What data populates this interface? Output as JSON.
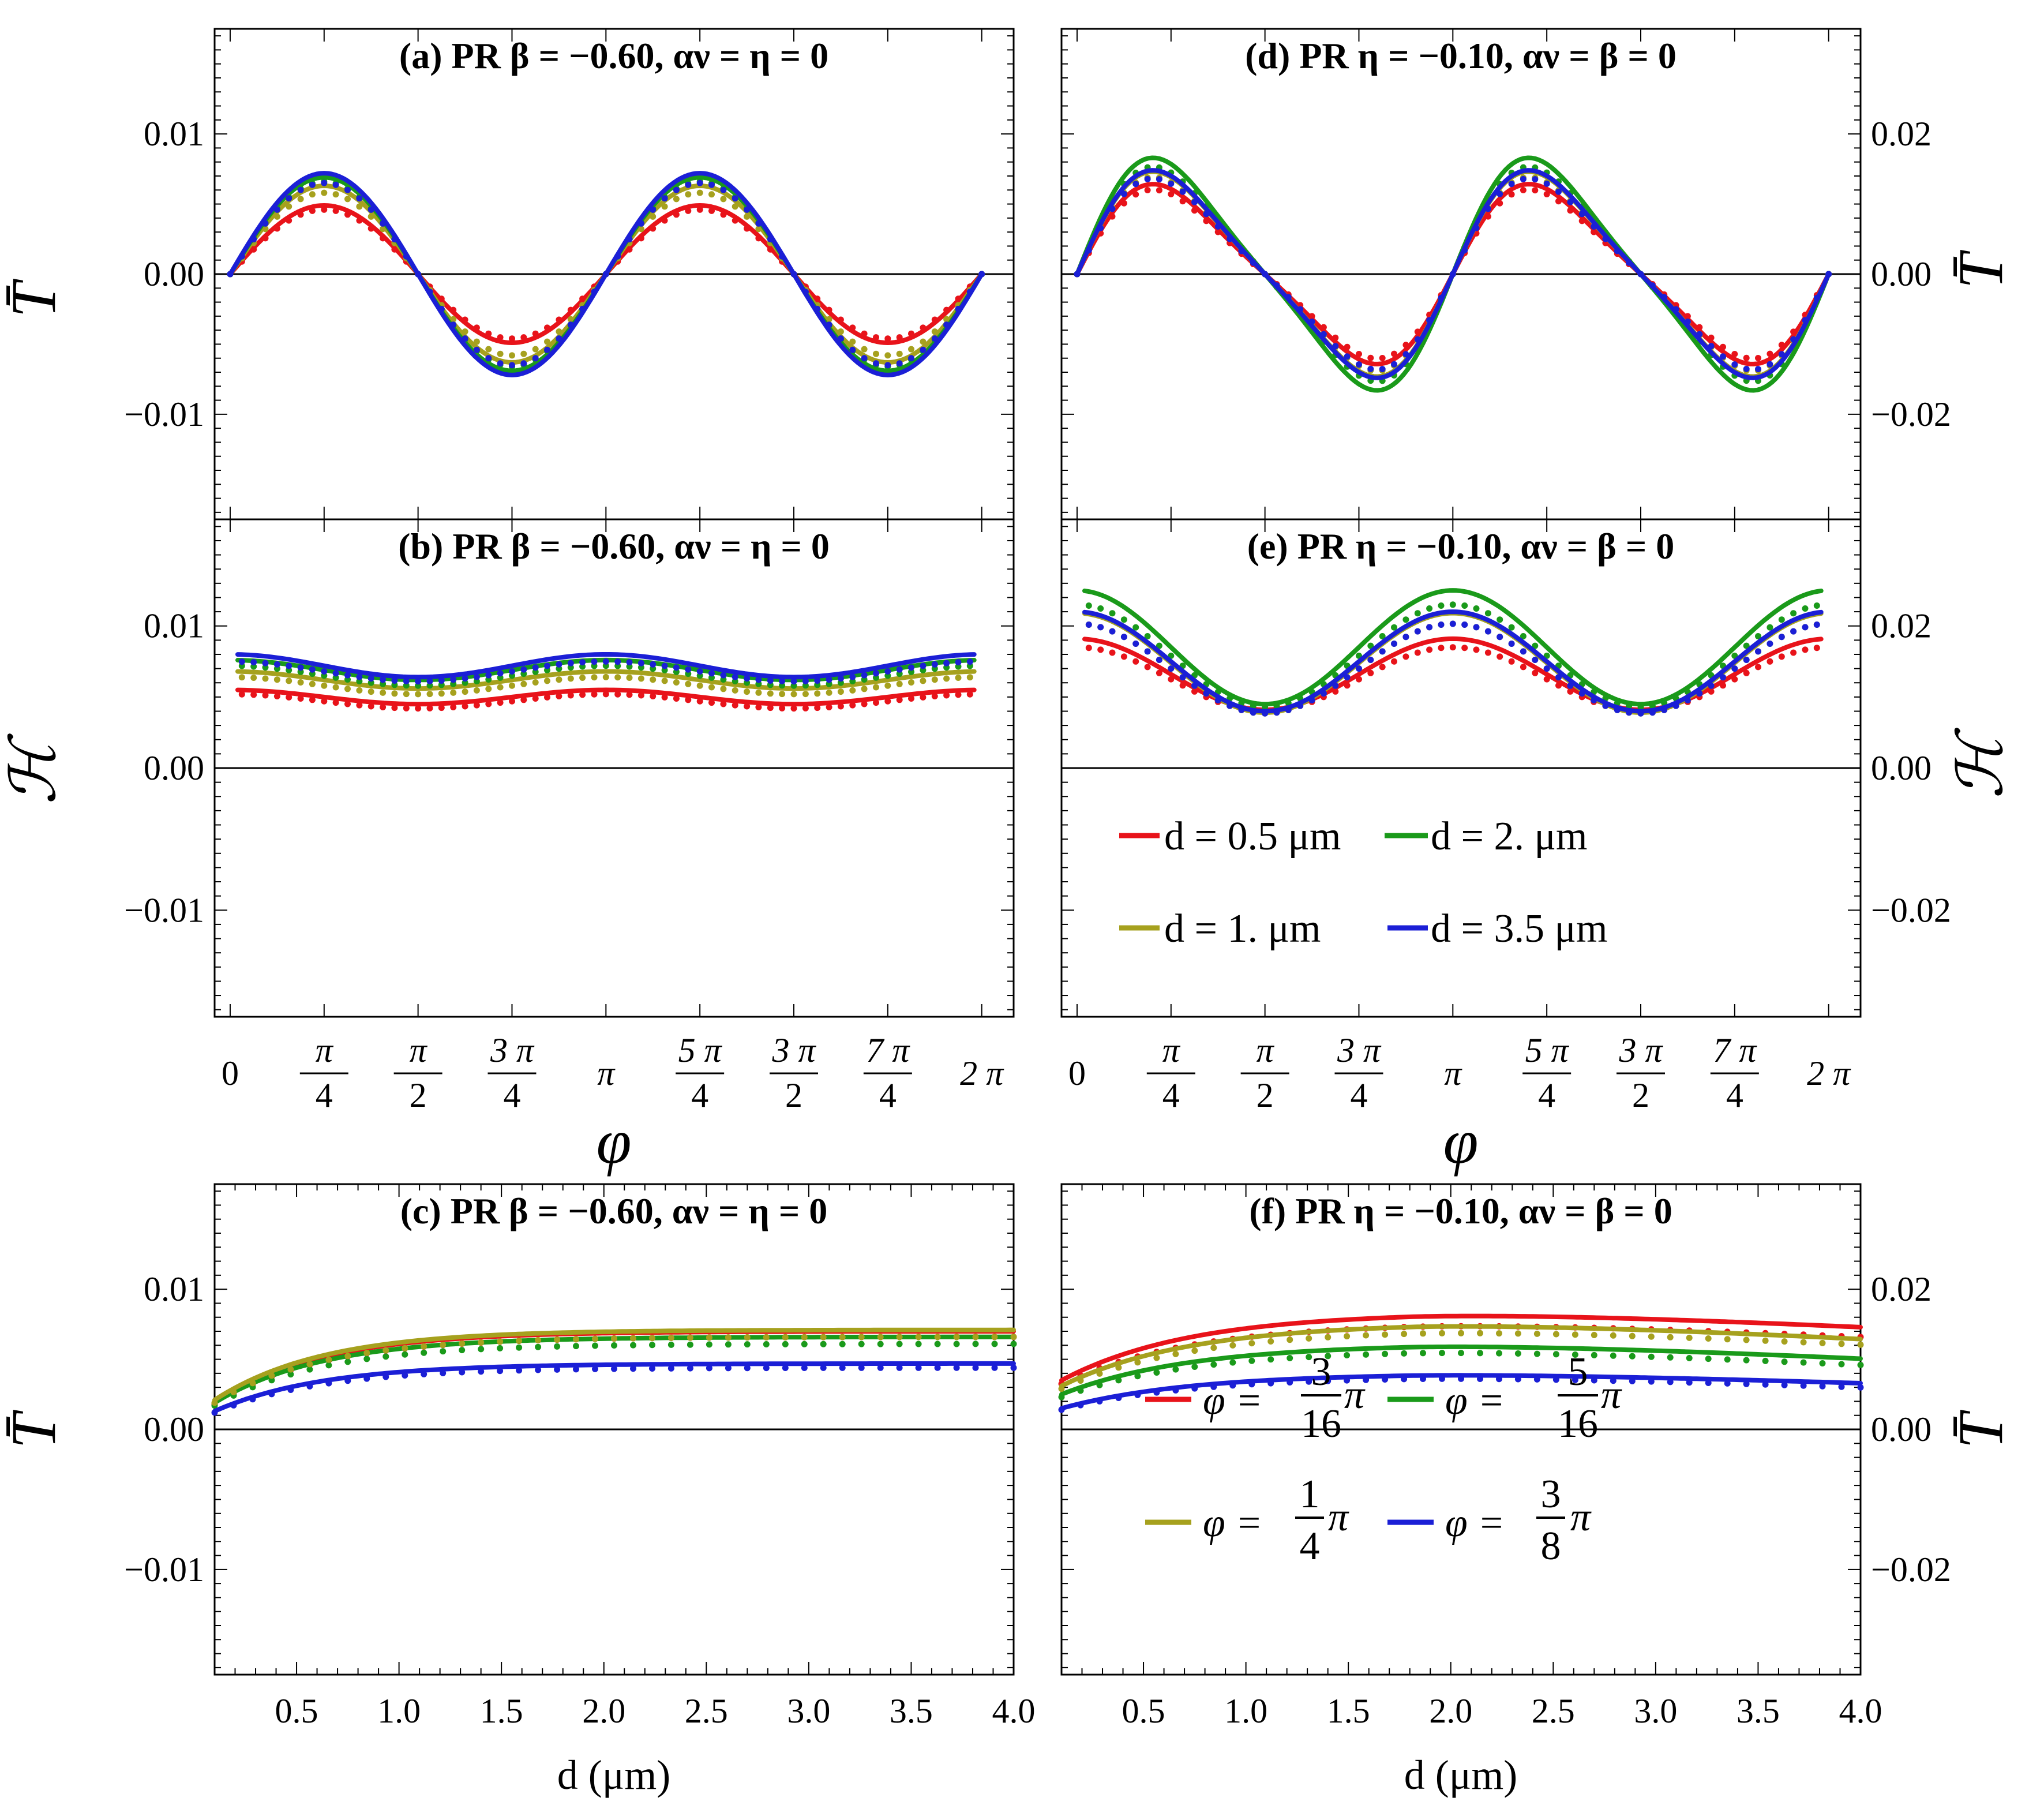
{
  "figure": {
    "x_axis_phi_label": "φ",
    "x_axis_d_label": "d (μm)",
    "y_axis_T_label": "T̄",
    "y_axis_H_label": "ℋ",
    "phi_ticks": [
      "0",
      "π/4",
      "π/2",
      "3π/4",
      "π",
      "5π/4",
      "3π/2",
      "7π/4",
      "2π"
    ],
    "d_ticks": [
      "0.5",
      "1.0",
      "1.5",
      "2.0",
      "2.5",
      "3.0",
      "3.5",
      "4.0"
    ],
    "left_y_ticks": [
      "0.01",
      "0.00",
      "−0.01"
    ],
    "right_y_ticks": [
      "0.02",
      "0.00",
      "−0.02"
    ],
    "colors": {
      "red": "#e8131a",
      "olive": "#a6a11e",
      "green": "#1a9a1a",
      "blue": "#1b1fd6"
    },
    "legend_d": [
      "d = 0.5 μm",
      "d = 1. μm",
      "d = 2. μm",
      "d = 3.5 μm"
    ],
    "legend_phi": [
      {
        "prefix": "φ =",
        "num": "3",
        "den": "16",
        "suffix": "π"
      },
      {
        "prefix": "φ =",
        "num": "5",
        "den": "16",
        "suffix": "π"
      },
      {
        "prefix": "φ =",
        "num": "1",
        "den": "4",
        "suffix": "π"
      },
      {
        "prefix": "φ =",
        "num": "3",
        "den": "8",
        "suffix": "π"
      }
    ]
  },
  "chart_data": [
    {
      "id": "a",
      "type": "line",
      "title": "(a) PR β = −0.60, αν = η = 0",
      "xlabel": "",
      "ylabel": "T̄",
      "x_kind": "phi",
      "xlim": [
        -0.13,
        6.55
      ],
      "ylim": [
        -0.0175,
        0.0175
      ],
      "series": [
        {
          "name": "d = 0.5 μm",
          "color": "red",
          "func": "sin2",
          "solid_amp": 0.0049,
          "dot_amp": 0.0046
        },
        {
          "name": "d = 1. μm",
          "color": "olive",
          "func": "sin2",
          "solid_amp": 0.0063,
          "dot_amp": 0.0058
        },
        {
          "name": "d = 2. μm",
          "color": "green",
          "func": "sin2",
          "solid_amp": 0.0069,
          "dot_amp": 0.0066
        },
        {
          "name": "d = 3.5 μm",
          "color": "blue",
          "func": "sin2",
          "solid_amp": 0.0072,
          "dot_amp": 0.0065
        }
      ]
    },
    {
      "id": "b",
      "type": "line",
      "title": "(b) PR β = −0.60, αν = η = 0",
      "xlabel": "φ",
      "ylabel": "ℋ",
      "x_kind": "phi",
      "xlim": [
        -0.13,
        6.55
      ],
      "ylim": [
        -0.0175,
        0.0175
      ],
      "series": [
        {
          "name": "d = 0.5 μm",
          "color": "red",
          "func": "cos2",
          "solid_mean": 0.005,
          "solid_amp": 0.0005,
          "dot_mean": 0.0047,
          "dot_amp": 0.0005
        },
        {
          "name": "d = 1. μm",
          "color": "olive",
          "func": "cos2",
          "solid_mean": 0.0062,
          "solid_amp": 0.0006,
          "dot_mean": 0.0058,
          "dot_amp": 0.0006
        },
        {
          "name": "d = 2. μm",
          "color": "green",
          "func": "cos2",
          "solid_mean": 0.0069,
          "solid_amp": 0.0007,
          "dot_mean": 0.0065,
          "dot_amp": 0.0007
        },
        {
          "name": "d = 3.5 μm",
          "color": "blue",
          "func": "cos2",
          "solid_mean": 0.0072,
          "solid_amp": 0.0008,
          "dot_mean": 0.0068,
          "dot_amp": 0.0007
        }
      ]
    },
    {
      "id": "c",
      "type": "line",
      "title": "(c) PR β = −0.60, αν = η = 0",
      "xlabel": "d (μm)",
      "ylabel": "T̄",
      "x_kind": "d",
      "xlim": [
        0.1,
        4.0
      ],
      "ylim": [
        -0.0175,
        0.0175
      ],
      "series": [
        {
          "name": "φ = 3/16 π",
          "color": "red",
          "func": "sat",
          "solid_y0": 0.002,
          "solid_plateau": 0.007,
          "dot_y0": 0.0018,
          "dot_plateau": 0.0066,
          "k": 1.9
        },
        {
          "name": "φ = 5/16 π",
          "color": "green",
          "func": "sat",
          "solid_y0": 0.0019,
          "solid_plateau": 0.0066,
          "dot_y0": 0.0017,
          "dot_plateau": 0.0061,
          "k": 1.9
        },
        {
          "name": "φ = 1/4 π",
          "color": "olive",
          "func": "sat",
          "solid_y0": 0.0021,
          "solid_plateau": 0.0071,
          "dot_y0": 0.0019,
          "dot_plateau": 0.0066,
          "k": 1.9
        },
        {
          "name": "φ = 3/8 π",
          "color": "blue",
          "func": "sat",
          "solid_y0": 0.0013,
          "solid_plateau": 0.0047,
          "dot_y0": 0.0012,
          "dot_plateau": 0.0044,
          "k": 1.9
        }
      ]
    },
    {
      "id": "d",
      "type": "line",
      "title": "(d) PR η = −0.10, αν = β = 0",
      "xlabel": "",
      "ylabel": "T̄",
      "x_kind": "phi",
      "xlim": [
        -0.13,
        6.55
      ],
      "ylim": [
        -0.035,
        0.035
      ],
      "series": [
        {
          "name": "d = 0.5 μm",
          "color": "red",
          "func": "skew",
          "solid_amp": 0.013,
          "dot_amp": 0.0122
        },
        {
          "name": "d = 1. μm",
          "color": "olive",
          "func": "skew",
          "solid_amp": 0.0148,
          "dot_amp": 0.014
        },
        {
          "name": "d = 2. μm",
          "color": "green",
          "func": "skew",
          "solid_amp": 0.0168,
          "dot_amp": 0.0155
        },
        {
          "name": "d = 3.5 μm",
          "color": "blue",
          "func": "skew",
          "solid_amp": 0.015,
          "dot_amp": 0.0138
        }
      ]
    },
    {
      "id": "e",
      "type": "line",
      "title": "(e) PR η = −0.10, αν = β = 0",
      "xlabel": "φ",
      "ylabel": "ℋ",
      "x_kind": "phi",
      "xlim": [
        -0.13,
        6.55
      ],
      "ylim": [
        -0.035,
        0.035
      ],
      "series": [
        {
          "name": "d = 0.5 μm",
          "color": "red",
          "func": "cos2",
          "solid_mean": 0.0132,
          "solid_amp": 0.005,
          "dot_mean": 0.0125,
          "dot_amp": 0.0045
        },
        {
          "name": "d = 1. μm",
          "color": "olive",
          "func": "cos2",
          "solid_mean": 0.0148,
          "solid_amp": 0.007,
          "dot_mean": 0.014,
          "dot_amp": 0.0063
        },
        {
          "name": "d = 2. μm",
          "color": "green",
          "func": "cos2",
          "solid_mean": 0.017,
          "solid_amp": 0.008,
          "dot_mean": 0.0158,
          "dot_amp": 0.0072
        },
        {
          "name": "d = 3.5 μm",
          "color": "blue",
          "func": "cos2",
          "solid_mean": 0.015,
          "solid_amp": 0.007,
          "dot_mean": 0.014,
          "dot_amp": 0.0063
        }
      ]
    },
    {
      "id": "f",
      "type": "line",
      "title": "(f) PR η = −0.10, αν = β = 0",
      "xlabel": "d (μm)",
      "ylabel": "T̄",
      "x_kind": "d",
      "xlim": [
        0.1,
        4.0
      ],
      "ylim": [
        -0.035,
        0.035
      ],
      "series": [
        {
          "name": "φ = 3/16 π",
          "color": "red",
          "func": "hump",
          "solid_y0": 0.007,
          "solid_peak": 0.0167,
          "solid_end": 0.0146,
          "dot_y0": 0.0065,
          "dot_peak": 0.0152,
          "dot_end": 0.0132,
          "k": 1.6,
          "xp": 1.8
        },
        {
          "name": "φ = 5/16 π",
          "color": "green",
          "func": "hump",
          "solid_y0": 0.005,
          "solid_peak": 0.0122,
          "solid_end": 0.0101,
          "dot_y0": 0.0046,
          "dot_peak": 0.0113,
          "dot_end": 0.0092,
          "k": 1.6,
          "xp": 1.8
        },
        {
          "name": "φ = 1/4 π",
          "color": "olive",
          "func": "hump",
          "solid_y0": 0.0062,
          "solid_peak": 0.0152,
          "solid_end": 0.0129,
          "dot_y0": 0.0058,
          "dot_peak": 0.0142,
          "dot_end": 0.0121,
          "k": 1.6,
          "xp": 1.8
        },
        {
          "name": "φ = 3/8 π",
          "color": "blue",
          "func": "hump",
          "solid_y0": 0.003,
          "solid_peak": 0.008,
          "solid_end": 0.0066,
          "dot_y0": 0.0028,
          "dot_peak": 0.0075,
          "dot_end": 0.006,
          "k": 1.6,
          "xp": 1.8
        }
      ]
    }
  ]
}
